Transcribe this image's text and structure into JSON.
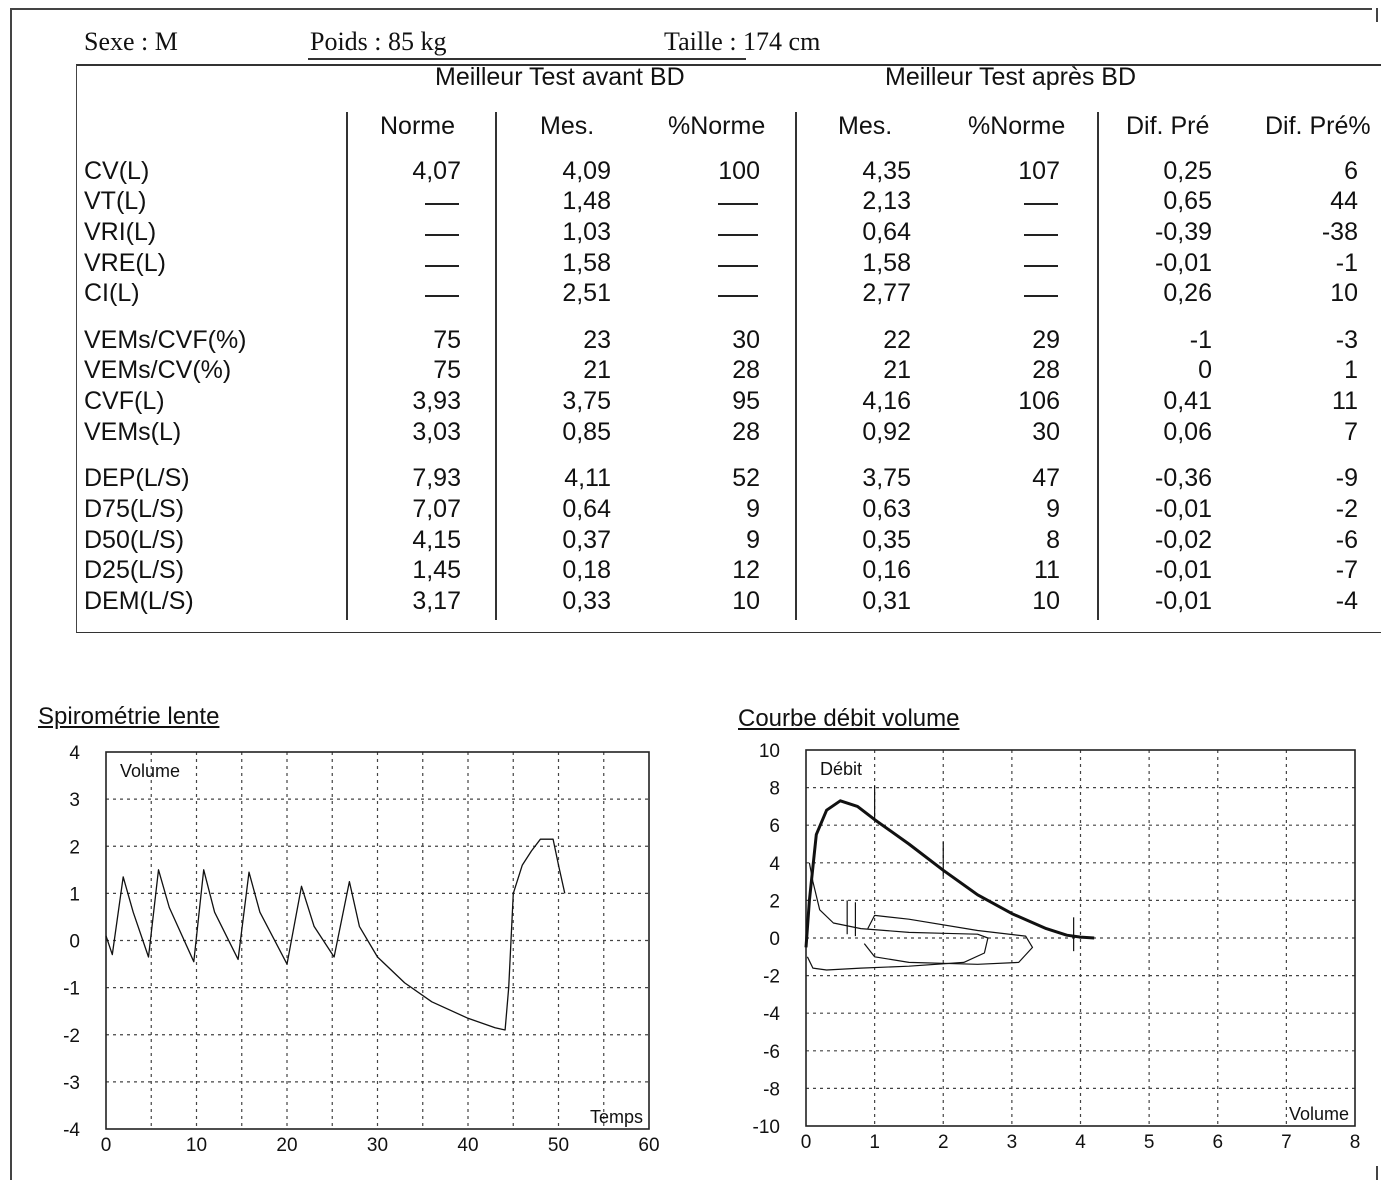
{
  "patient": {
    "sexe": "Sexe : M",
    "poids": "Poids : 85 kg",
    "taille": "Taille : 174 cm"
  },
  "table": {
    "group_before": "Meilleur Test avant BD",
    "group_after": "Meilleur Test après BD",
    "columns": [
      "Norme",
      "Mes.",
      "%Norme",
      "Mes.",
      "%Norme",
      "Dif. Pré",
      "Dif. Pré%"
    ],
    "dash_symbol": "—",
    "rows": [
      {
        "label": "CV(L)",
        "values": [
          "4,07",
          "4,09",
          "100",
          "4,35",
          "107",
          "0,25",
          "6"
        ]
      },
      {
        "label": "VT(L)",
        "values": [
          "—",
          "1,48",
          "—",
          "2,13",
          "—",
          "0,65",
          "44"
        ]
      },
      {
        "label": "VRI(L)",
        "values": [
          "—",
          "1,03",
          "—",
          "0,64",
          "—",
          "-0,39",
          "-38"
        ]
      },
      {
        "label": "VRE(L)",
        "values": [
          "—",
          "1,58",
          "—",
          "1,58",
          "—",
          "-0,01",
          "-1"
        ]
      },
      {
        "label": "CI(L)",
        "values": [
          "—",
          "2,51",
          "—",
          "2,77",
          "—",
          "0,26",
          "10"
        ]
      },
      {
        "label": "VEMs/CVF(%)",
        "values": [
          "75",
          "23",
          "30",
          "22",
          "29",
          "-1",
          "-3"
        ]
      },
      {
        "label": "VEMs/CV(%)",
        "values": [
          "75",
          "21",
          "28",
          "21",
          "28",
          "0",
          "1"
        ]
      },
      {
        "label": "CVF(L)",
        "values": [
          "3,93",
          "3,75",
          "95",
          "4,16",
          "106",
          "0,41",
          "11"
        ]
      },
      {
        "label": "VEMs(L)",
        "values": [
          "3,03",
          "0,85",
          "28",
          "0,92",
          "30",
          "0,06",
          "7"
        ]
      },
      {
        "label": "DEP(L/S)",
        "values": [
          "7,93",
          "4,11",
          "52",
          "3,75",
          "47",
          "-0,36",
          "-9"
        ]
      },
      {
        "label": "D75(L/S)",
        "values": [
          "7,07",
          "0,64",
          "9",
          "0,63",
          "9",
          "-0,01",
          "-2"
        ]
      },
      {
        "label": "D50(L/S)",
        "values": [
          "4,15",
          "0,37",
          "9",
          "0,35",
          "8",
          "-0,02",
          "-6"
        ]
      },
      {
        "label": "D25(L/S)",
        "values": [
          "1,45",
          "0,18",
          "12",
          "0,16",
          "11",
          "-0,01",
          "-7"
        ]
      },
      {
        "label": "DEM(L/S)",
        "values": [
          "3,17",
          "0,33",
          "10",
          "0,31",
          "10",
          "-0,01",
          "-4"
        ]
      }
    ]
  },
  "chart_data": [
    {
      "type": "line",
      "title": "Spirométrie lente",
      "ylabel": "Volume",
      "xlabel": "Temps",
      "xlim": [
        0,
        60
      ],
      "ylim": [
        -4,
        4
      ],
      "x_ticks": [
        0,
        10,
        20,
        30,
        40,
        50,
        60
      ],
      "y_ticks": [
        4,
        3,
        2,
        1,
        0,
        -1,
        -2,
        -3,
        -4
      ],
      "grid": true,
      "series": [
        {
          "x": [
            0,
            0.7,
            1.9,
            3,
            4.7,
            5.8,
            7,
            9.7,
            10.8,
            12,
            14.6,
            15.8,
            17,
            20,
            21.6,
            23,
            25.2,
            26.9,
            28,
            30,
            33,
            36,
            40,
            43,
            44.1,
            44.5,
            45,
            46,
            47,
            48,
            49.4,
            50,
            50.7
          ],
          "y": [
            0.1,
            -0.3,
            1.35,
            0.6,
            -0.35,
            1.5,
            0.7,
            -0.45,
            1.5,
            0.6,
            -0.4,
            1.45,
            0.6,
            -0.5,
            1.15,
            0.3,
            -0.35,
            1.25,
            0.3,
            -0.35,
            -0.9,
            -1.3,
            -1.65,
            -1.85,
            -1.9,
            -1.0,
            1.0,
            1.6,
            1.9,
            2.15,
            2.15,
            1.6,
            1.0
          ]
        }
      ]
    },
    {
      "type": "line",
      "title": "Courbe débit volume",
      "ylabel": "Débit",
      "xlabel": "Volume",
      "xlim": [
        0,
        8
      ],
      "ylim": [
        -10,
        10
      ],
      "x_ticks": [
        0,
        1,
        2,
        3,
        4,
        5,
        6,
        7,
        8
      ],
      "y_ticks": [
        10,
        8,
        6,
        4,
        2,
        0,
        -2,
        -4,
        -6,
        -8,
        -10
      ],
      "grid": true,
      "series": [
        {
          "x": [
            0,
            0.05,
            0.15,
            0.3,
            0.5,
            0.75,
            1,
            1.5,
            2,
            2.5,
            3,
            3.5,
            3.8,
            4,
            4.2
          ],
          "y": [
            -0.5,
            2,
            5.5,
            6.8,
            7.3,
            7.0,
            6.3,
            5.0,
            3.6,
            2.3,
            1.3,
            0.5,
            0.15,
            0.05,
            0.0
          ]
        },
        {
          "x": [
            0.05,
            0.1,
            0.2,
            0.4,
            0.8,
            1.5,
            2,
            2.5,
            2.65,
            2.6,
            2.3,
            1.5,
            0.8,
            0.3,
            0.1,
            0.02
          ],
          "y": [
            4.0,
            3.0,
            1.5,
            0.8,
            0.5,
            0.3,
            0.25,
            0.2,
            0.0,
            -0.8,
            -1.3,
            -1.5,
            -1.6,
            -1.7,
            -1.6,
            -1.0
          ]
        },
        {
          "x": [
            0.9,
            1.0,
            1.5,
            2.5,
            3.2,
            3.3,
            3.1,
            2.5,
            1.5,
            1.0,
            0.85
          ],
          "y": [
            0.5,
            1.2,
            1.0,
            0.4,
            0.1,
            -0.5,
            -1.3,
            -1.4,
            -1.3,
            -1.0,
            -0.3
          ]
        }
      ]
    }
  ]
}
